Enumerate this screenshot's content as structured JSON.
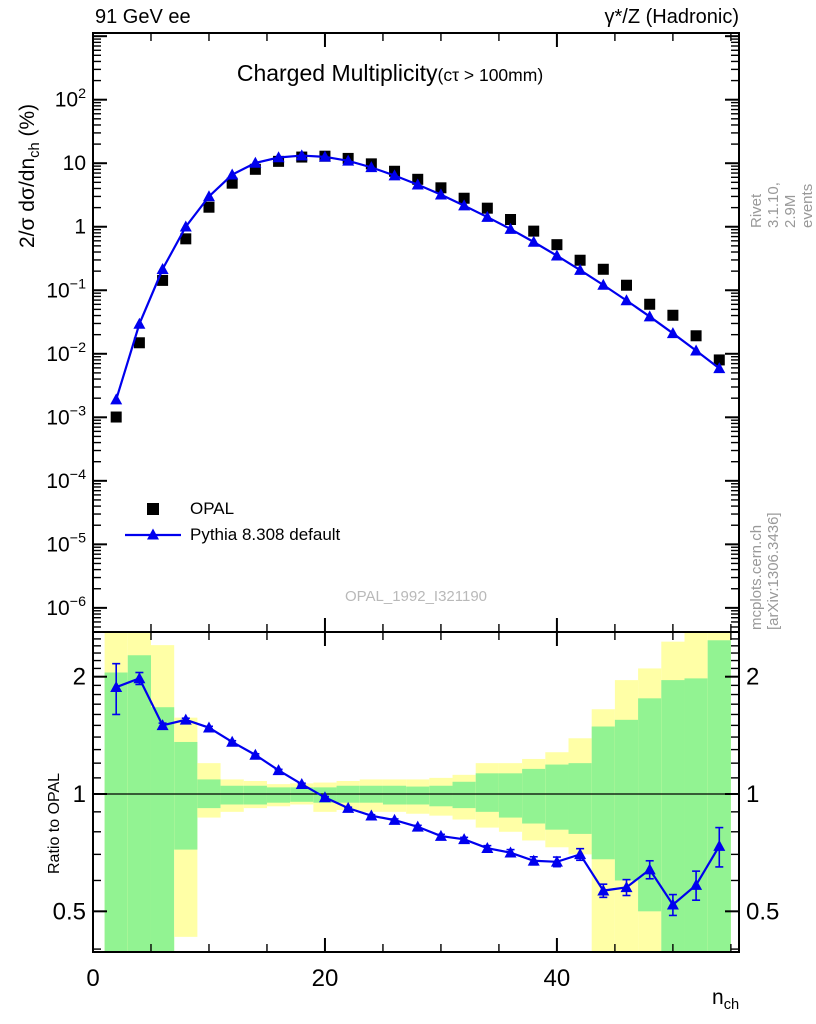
{
  "header": {
    "left": "91 GeV ee",
    "right": "γ*/Z (Hadronic)"
  },
  "title": {
    "main": "Charged Multiplicity",
    "suffix": "(cτ > 100mm)"
  },
  "side_notes": {
    "top_right": "Rivet 3.1.10,  2.9M events",
    "bottom_right": "mcplots.cern.ch [arXiv:1306.3436]"
  },
  "watermark": "OPAL_1992_I321190",
  "legend": [
    {
      "label": "OPAL",
      "marker": "black-square"
    },
    {
      "label": "Pythia 8.308 default",
      "marker": "blue-triangle-line"
    }
  ],
  "axes": {
    "main_y_label": {
      "text": "2/σ dσ/dn",
      "sub": "ch",
      "suffix": " (%)"
    },
    "ratio_y_label": "Ratio to OPAL",
    "x_label": {
      "text": "n",
      "sub": "ch"
    }
  },
  "colors": {
    "mc_blue": "#0000ee",
    "data_black": "#000000",
    "band_inner_green": "#92f392",
    "band_outer_yellow": "#ffffa6",
    "note_gray": "#999999",
    "watermark_gray": "#b9b9b9"
  },
  "chart_data": [
    {
      "type": "line",
      "title": "Charged Multiplicity (ctau > 100mm), 91 GeV ee",
      "xlabel": "n_ch",
      "ylabel": "2/sigma dsigma/dn_ch (%)",
      "y_scale": "log",
      "xlim": [
        0,
        55.7
      ],
      "ylim_log": [
        -6.38,
        3.05
      ],
      "x": [
        2,
        4,
        6,
        8,
        10,
        12,
        14,
        16,
        18,
        20,
        22,
        24,
        26,
        28,
        30,
        32,
        34,
        36,
        38,
        40,
        42,
        44,
        46,
        48,
        50,
        52,
        54
      ],
      "series": [
        {
          "name": "OPAL",
          "style": "square-markers",
          "values": [
            0.00101,
            0.0149,
            0.143,
            0.645,
            2.03,
            4.85,
            8.02,
            10.7,
            12.5,
            12.9,
            11.9,
            9.77,
            7.47,
            5.58,
            4.1,
            2.81,
            1.96,
            1.3,
            0.853,
            0.522,
            0.297,
            0.214,
            0.12,
            0.0602,
            0.0404,
            0.0192,
            0.008
          ]
        },
        {
          "name": "Pythia 8.308 default",
          "style": "line-triangle-markers",
          "values": [
            0.0019,
            0.0295,
            0.215,
            1.0,
            3.0,
            6.6,
            10.1,
            12.3,
            13.2,
            12.6,
            10.9,
            8.6,
            6.4,
            4.6,
            3.2,
            2.15,
            1.42,
            0.92,
            0.575,
            0.35,
            0.208,
            0.121,
            0.069,
            0.0385,
            0.021,
            0.0112,
            0.0059
          ]
        }
      ],
      "x_ticks": [
        {
          "v": 0,
          "label": "0"
        },
        {
          "v": 20,
          "label": "20"
        },
        {
          "v": 40,
          "label": "40"
        }
      ],
      "x_minor_step": 5,
      "y_ticks": [
        {
          "v": 100,
          "label": "10^{2}"
        },
        {
          "v": 10,
          "label": "10"
        },
        {
          "v": 1,
          "label": "1"
        },
        {
          "v": 0.1,
          "label": "10^{−1}"
        },
        {
          "v": 0.01,
          "label": "10^{−2}"
        },
        {
          "v": 0.001,
          "label": "10^{−3}"
        },
        {
          "v": 0.0001,
          "label": "10^{−4}"
        },
        {
          "v": 1e-05,
          "label": "10^{−5}"
        },
        {
          "v": 1e-06,
          "label": "10^{−6}"
        }
      ],
      "grid": false,
      "legend_position": "lower-left-inside"
    },
    {
      "type": "ratio",
      "ylabel": "Ratio to OPAL",
      "y_scale": "log",
      "xlim": [
        0,
        55.7
      ],
      "ylim_log": [
        -0.4054,
        0.4157
      ],
      "reference_line": 1,
      "x": [
        2,
        4,
        6,
        8,
        10,
        12,
        14,
        16,
        18,
        20,
        22,
        24,
        26,
        28,
        30,
        32,
        34,
        36,
        38,
        40,
        42,
        44,
        46,
        48,
        50,
        52,
        54
      ],
      "ratio_mc_over_data": [
        1.88,
        1.98,
        1.5,
        1.55,
        1.48,
        1.36,
        1.26,
        1.15,
        1.06,
        0.98,
        0.92,
        0.88,
        0.857,
        0.824,
        0.78,
        0.765,
        0.726,
        0.707,
        0.674,
        0.67,
        0.7,
        0.565,
        0.576,
        0.64,
        0.52,
        0.584,
        0.735
      ],
      "ratio_err": [
        0.28,
        0.07,
        0.02,
        0.015,
        0.012,
        0.01,
        0.008,
        0.007,
        0.006,
        0.005,
        0.005,
        0.005,
        0.006,
        0.007,
        0.008,
        0.009,
        0.011,
        0.013,
        0.016,
        0.019,
        0.024,
        0.022,
        0.027,
        0.034,
        0.032,
        0.05,
        0.085
      ],
      "bands_ylo_glo_ghi_yhi": [
        [
          0.35,
          0.35,
          2.05,
          2.6
        ],
        [
          0.35,
          0.35,
          2.27,
          2.6
        ],
        [
          0.35,
          0.35,
          1.67,
          2.41
        ],
        [
          0.43,
          0.72,
          1.36,
          1.57
        ],
        [
          0.87,
          0.92,
          1.09,
          1.2
        ],
        [
          0.9,
          0.94,
          1.05,
          1.09
        ],
        [
          0.92,
          0.94,
          1.05,
          1.08
        ],
        [
          0.93,
          0.95,
          1.04,
          1.06
        ],
        [
          0.94,
          0.955,
          1.04,
          1.065
        ],
        [
          0.9,
          0.95,
          1.04,
          1.07
        ],
        [
          0.91,
          0.95,
          1.05,
          1.08
        ],
        [
          0.9,
          0.95,
          1.05,
          1.09
        ],
        [
          0.9,
          0.94,
          1.05,
          1.09
        ],
        [
          0.89,
          0.94,
          1.045,
          1.09
        ],
        [
          0.88,
          0.93,
          1.05,
          1.1
        ],
        [
          0.86,
          0.92,
          1.075,
          1.12
        ],
        [
          0.82,
          0.9,
          1.13,
          1.2
        ],
        [
          0.8,
          0.87,
          1.13,
          1.2
        ],
        [
          0.76,
          0.84,
          1.16,
          1.23
        ],
        [
          0.73,
          0.81,
          1.19,
          1.28
        ],
        [
          0.7,
          0.79,
          1.2,
          1.39
        ],
        [
          0.35,
          0.68,
          1.49,
          1.65
        ],
        [
          0.35,
          0.6,
          1.55,
          1.96
        ],
        [
          0.35,
          0.5,
          1.76,
          2.1
        ],
        [
          0.35,
          0.35,
          1.96,
          2.46
        ],
        [
          0.35,
          0.35,
          1.98,
          2.7
        ],
        [
          0.35,
          0.35,
          2.48,
          2.7
        ]
      ],
      "y_ticks": [
        {
          "v": 2,
          "label": "2"
        },
        {
          "v": 1,
          "label": "1"
        },
        {
          "v": 0.5,
          "label": "0.5"
        }
      ]
    }
  ]
}
